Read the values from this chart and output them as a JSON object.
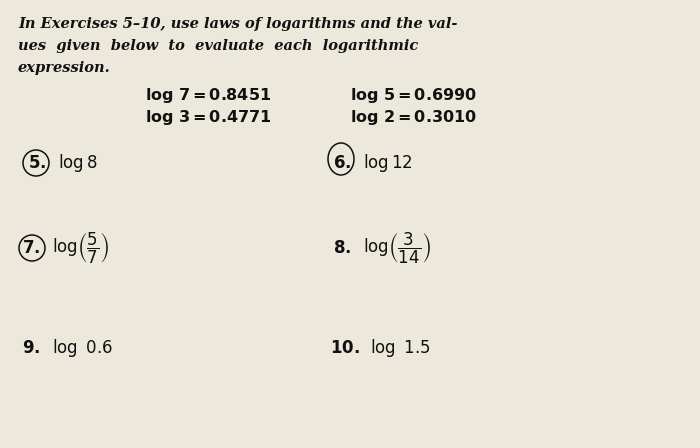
{
  "bg_color": "#ede8dc",
  "text_color": "#111111",
  "intro_line1": "In Exercises 5–10, use laws of logarithms and the val-",
  "intro_line2": "ues  given  below  to  evaluate  each  logarithmic",
  "intro_line3": "expression.",
  "figsize": [
    7.0,
    4.48
  ],
  "dpi": 100
}
